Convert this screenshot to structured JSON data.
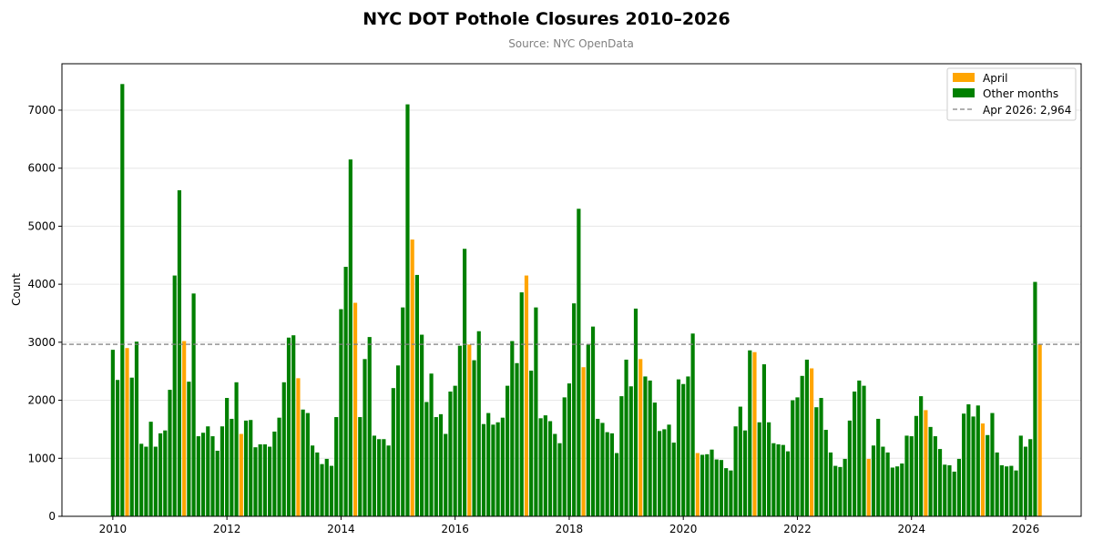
{
  "chart_data": {
    "type": "bar",
    "title": "NYC DOT Pothole Closures 2010–2026",
    "subtitle": "Source: NYC OpenData",
    "xlabel": "",
    "ylabel": "Count",
    "xlim": [
      "2009-02-10",
      "2026-12-22"
    ],
    "ylim": [
      0,
      7800
    ],
    "xticks": [
      "2010",
      "2012",
      "2014",
      "2016",
      "2018",
      "2020",
      "2022",
      "2024",
      "2026"
    ],
    "yticks": [
      0,
      1000,
      2000,
      3000,
      4000,
      5000,
      6000,
      7000
    ],
    "grid": "horizontal",
    "legend_position": "top-right",
    "legend": [
      {
        "label": "April",
        "color": "#ffa500"
      },
      {
        "label": "Other months",
        "color": "#008000"
      },
      {
        "label": "Apr 2026: 2,964",
        "style": "dashed-line",
        "color": "#808080"
      }
    ],
    "reference_line": {
      "label": "Apr 2026: 2,964",
      "value": 2964
    },
    "colors": {
      "april": "#ffa500",
      "other": "#008000",
      "reference_line": "#808080"
    },
    "series": [
      {
        "name": "Pothole closures",
        "x": [
          "2010-01",
          "2010-02",
          "2010-03",
          "2010-04",
          "2010-05",
          "2010-06",
          "2010-07",
          "2010-08",
          "2010-09",
          "2010-10",
          "2010-11",
          "2010-12",
          "2011-01",
          "2011-02",
          "2011-03",
          "2011-04",
          "2011-05",
          "2011-06",
          "2011-07",
          "2011-08",
          "2011-09",
          "2011-10",
          "2011-11",
          "2011-12",
          "2012-01",
          "2012-02",
          "2012-03",
          "2012-04",
          "2012-05",
          "2012-06",
          "2012-07",
          "2012-08",
          "2012-09",
          "2012-10",
          "2012-11",
          "2012-12",
          "2013-01",
          "2013-02",
          "2013-03",
          "2013-04",
          "2013-05",
          "2013-06",
          "2013-07",
          "2013-08",
          "2013-09",
          "2013-10",
          "2013-11",
          "2013-12",
          "2014-01",
          "2014-02",
          "2014-03",
          "2014-04",
          "2014-05",
          "2014-06",
          "2014-07",
          "2014-08",
          "2014-09",
          "2014-10",
          "2014-11",
          "2014-12",
          "2015-01",
          "2015-02",
          "2015-03",
          "2015-04",
          "2015-05",
          "2015-06",
          "2015-07",
          "2015-08",
          "2015-09",
          "2015-10",
          "2015-11",
          "2015-12",
          "2016-01",
          "2016-02",
          "2016-03",
          "2016-04",
          "2016-05",
          "2016-06",
          "2016-07",
          "2016-08",
          "2016-09",
          "2016-10",
          "2016-11",
          "2016-12",
          "2017-01",
          "2017-02",
          "2017-03",
          "2017-04",
          "2017-05",
          "2017-06",
          "2017-07",
          "2017-08",
          "2017-09",
          "2017-10",
          "2017-11",
          "2017-12",
          "2018-01",
          "2018-02",
          "2018-03",
          "2018-04",
          "2018-05",
          "2018-06",
          "2018-07",
          "2018-08",
          "2018-09",
          "2018-10",
          "2018-11",
          "2018-12",
          "2019-01",
          "2019-02",
          "2019-03",
          "2019-04",
          "2019-05",
          "2019-06",
          "2019-07",
          "2019-08",
          "2019-09",
          "2019-10",
          "2019-11",
          "2019-12",
          "2020-01",
          "2020-02",
          "2020-03",
          "2020-04",
          "2020-05",
          "2020-06",
          "2020-07",
          "2020-08",
          "2020-09",
          "2020-10",
          "2020-11",
          "2020-12",
          "2021-01",
          "2021-02",
          "2021-03",
          "2021-04",
          "2021-05",
          "2021-06",
          "2021-07",
          "2021-08",
          "2021-09",
          "2021-10",
          "2021-11",
          "2021-12",
          "2022-01",
          "2022-02",
          "2022-03",
          "2022-04",
          "2022-05",
          "2022-06",
          "2022-07",
          "2022-08",
          "2022-09",
          "2022-10",
          "2022-11",
          "2022-12",
          "2023-01",
          "2023-02",
          "2023-03",
          "2023-04",
          "2023-05",
          "2023-06",
          "2023-07",
          "2023-08",
          "2023-09",
          "2023-10",
          "2023-11",
          "2023-12",
          "2024-01",
          "2024-02",
          "2024-03",
          "2024-04",
          "2024-05",
          "2024-06",
          "2024-07",
          "2024-08",
          "2024-09",
          "2024-10",
          "2024-11",
          "2024-12",
          "2025-01",
          "2025-02",
          "2025-03",
          "2025-04",
          "2025-05",
          "2025-06",
          "2025-07",
          "2025-08",
          "2025-09",
          "2025-10",
          "2025-11",
          "2025-12",
          "2026-01",
          "2026-02",
          "2026-03",
          "2026-04"
        ],
        "values": [
          2870,
          2350,
          7450,
          2900,
          2390,
          3010,
          1250,
          1200,
          1630,
          1200,
          1430,
          1480,
          2180,
          4150,
          5620,
          3020,
          2320,
          3840,
          1380,
          1440,
          1550,
          1380,
          1130,
          1550,
          2040,
          1680,
          2310,
          1420,
          1650,
          1660,
          1190,
          1240,
          1240,
          1200,
          1460,
          1700,
          2310,
          3080,
          3120,
          2380,
          1840,
          1780,
          1220,
          1100,
          900,
          990,
          870,
          1710,
          3570,
          4300,
          6150,
          3680,
          1710,
          2710,
          3090,
          1390,
          1330,
          1330,
          1220,
          2210,
          2600,
          3600,
          7100,
          4770,
          4160,
          3130,
          1970,
          2460,
          1710,
          1760,
          1420,
          2150,
          2250,
          2940,
          4610,
          2960,
          2690,
          3190,
          1590,
          1780,
          1580,
          1620,
          1700,
          2250,
          3020,
          2640,
          3860,
          4150,
          2510,
          3600,
          1690,
          1740,
          1640,
          1420,
          1260,
          2050,
          2290,
          3670,
          5300,
          2570,
          2960,
          3270,
          1680,
          1610,
          1450,
          1430,
          1090,
          2070,
          2700,
          2240,
          3580,
          2710,
          2410,
          2340,
          1960,
          1470,
          1500,
          1580,
          1270,
          2360,
          2280,
          2410,
          3150,
          1090,
          1060,
          1070,
          1150,
          980,
          970,
          830,
          790,
          1550,
          1890,
          1480,
          2860,
          2830,
          1620,
          2620,
          1620,
          1260,
          1240,
          1230,
          1120,
          2000,
          2050,
          2420,
          2700,
          2550,
          1880,
          2040,
          1490,
          1100,
          870,
          850,
          990,
          1650,
          2150,
          2340,
          2250,
          990,
          1220,
          1680,
          1200,
          1100,
          840,
          860,
          910,
          1390,
          1380,
          1730,
          2070,
          1830,
          1540,
          1380,
          1160,
          890,
          880,
          770,
          990,
          1770,
          1930,
          1720,
          1910,
          1600,
          1400,
          1780,
          1100,
          880,
          860,
          870,
          790,
          1390,
          1200,
          1330,
          4040,
          2964
        ]
      }
    ]
  }
}
